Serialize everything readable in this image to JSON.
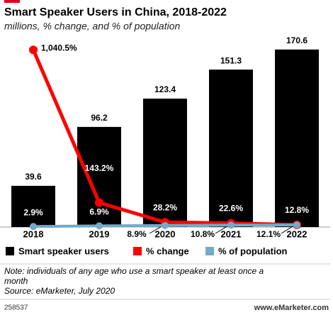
{
  "chart_data": {
    "type": "bar",
    "title": "Smart Speaker Users in China, 2018-2022",
    "subtitle": "millions, % change, and % of population",
    "categories": [
      "2018",
      "2019",
      "2020",
      "2021",
      "2022"
    ],
    "series": [
      {
        "name": "Smart speaker users",
        "type": "bar",
        "color": "#000000",
        "values": [
          39.6,
          96.2,
          123.4,
          151.3,
          170.6
        ]
      },
      {
        "name": "% change",
        "type": "line",
        "axis": "y2",
        "color": "#ff0000",
        "values": [
          1040.5,
          143.2,
          28.2,
          22.6,
          12.8
        ],
        "value_labels": [
          "1,040.5%",
          "143.2%",
          "28.2%",
          "22.6%",
          "12.8%"
        ]
      },
      {
        "name": "% of population",
        "type": "line",
        "axis": "y2",
        "color": "#72aac8",
        "values": [
          2.9,
          6.9,
          8.9,
          10.8,
          12.1
        ],
        "value_labels": [
          "2.9%",
          "6.9%",
          "8.9%",
          "10.8%",
          "12.1%"
        ]
      }
    ],
    "ylim": [
      0,
      180
    ],
    "y2lim": [
      0,
      1100
    ],
    "note": "Note: individuals of any age who use a smart speaker at least once a month",
    "source": "Source: eMarketer, July 2020",
    "chart_id": "258537",
    "footer": "www.eMarketer.com"
  }
}
